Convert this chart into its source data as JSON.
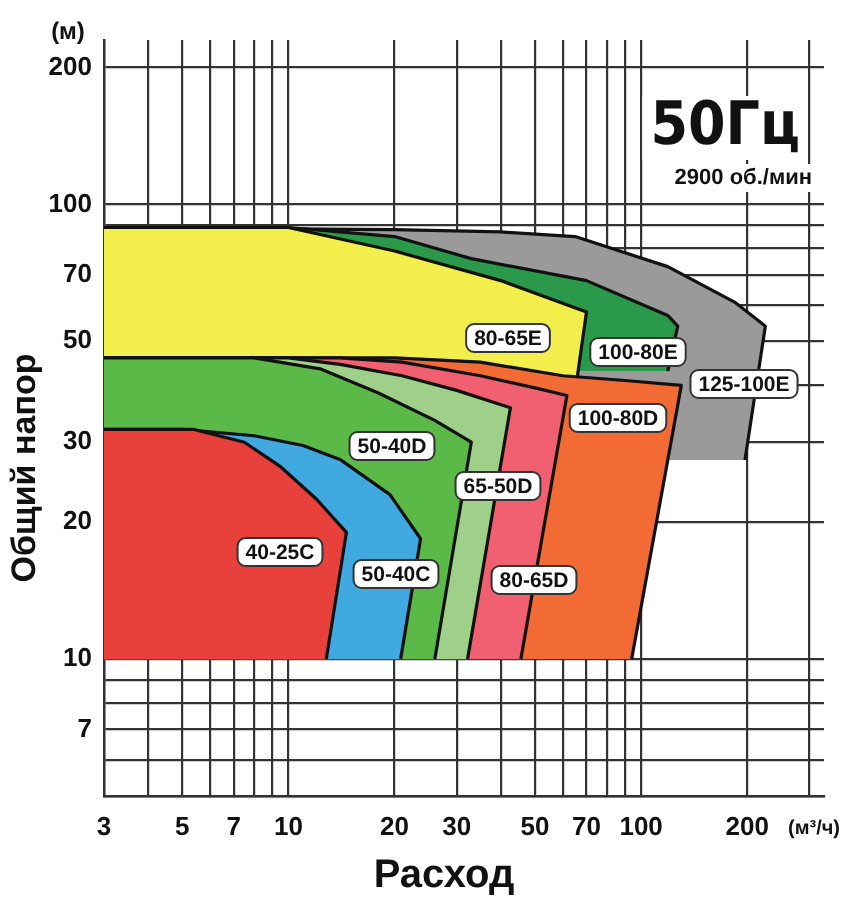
{
  "chart_data": {
    "type": "area",
    "xlabel": "Расход",
    "ylabel": "Общий напор",
    "log": "xy",
    "grid": true,
    "legend": false,
    "annotations": [
      "(м)",
      "(м³/ч)",
      "50Гц",
      "2900 об./мин"
    ],
    "xlim": [
      3,
      330
    ],
    "ylim": [
      5,
      230
    ],
    "xticks": [
      3,
      {
        "value": 4,
        "label": null
      },
      5,
      {
        "value": 6,
        "label": null
      },
      7,
      {
        "value": 8,
        "label": null
      },
      {
        "value": 9,
        "label": null
      },
      10,
      20,
      30,
      {
        "value": 40,
        "label": null
      },
      50,
      {
        "value": 60,
        "label": null
      },
      70,
      {
        "value": 80,
        "label": null
      },
      {
        "value": 90,
        "label": null
      },
      100,
      200,
      {
        "value": 300,
        "label": null
      }
    ],
    "yticks": [
      {
        "value": 5,
        "label": null
      },
      {
        "value": 6,
        "label": null
      },
      7,
      {
        "value": 8,
        "label": null
      },
      {
        "value": 9,
        "label": null
      },
      10,
      20,
      30,
      {
        "value": 40,
        "label": null
      },
      50,
      {
        "value": 60,
        "label": null
      },
      70,
      {
        "value": 80,
        "label": null
      },
      {
        "value": 90,
        "label": null
      },
      100,
      200
    ],
    "series": [
      {
        "name": "125-100E",
        "color": "#9a9a9a",
        "x": [
          3,
          20,
          40,
          65,
          119,
          184,
          225,
          197
        ],
        "values": [
          89,
          88,
          87,
          85,
          73,
          61,
          54,
          27.4
        ]
      },
      {
        "name": "100-80E",
        "color": "#2a9a4a",
        "x": [
          3,
          10,
          20,
          33,
          70,
          119,
          127,
          119
        ],
        "values": [
          89,
          89,
          85,
          76,
          68,
          57,
          54,
          43
        ]
      },
      {
        "name": "80-65E",
        "color": "#f2ee4c",
        "x": [
          3,
          10,
          20,
          40,
          70,
          66
        ],
        "values": [
          89,
          89,
          79,
          68,
          58,
          42
        ]
      },
      {
        "name": "100-80D",
        "color": "#f26b35",
        "x": [
          3,
          20,
          35,
          60,
          90,
          130,
          94
        ],
        "values": [
          46,
          46,
          45,
          42,
          41,
          40,
          10
        ]
      },
      {
        "name": "80-65D",
        "color": "#f06070",
        "x": [
          3,
          14,
          21,
          35,
          50,
          61.6,
          45.6
        ],
        "values": [
          46,
          46,
          45,
          42,
          39.5,
          38,
          10
        ]
      },
      {
        "name": "65-50D",
        "color": "#9fd08a",
        "x": [
          3,
          10,
          14,
          21,
          30,
          42.6,
          32.2
        ],
        "values": [
          46,
          46,
          44.5,
          42,
          39,
          35.7,
          10
        ]
      },
      {
        "name": "50-40D",
        "color": "#5bb947",
        "x": [
          3,
          8,
          12.3,
          18,
          26,
          33,
          26
        ],
        "values": [
          46,
          46,
          43.5,
          38.5,
          33.5,
          30,
          10
        ]
      },
      {
        "name": "50-40C",
        "color": "#3fa9e0",
        "x": [
          3,
          5,
          8,
          11,
          14,
          19.4,
          23.7,
          20.8
        ],
        "values": [
          32,
          32,
          31,
          29.5,
          27.5,
          23,
          18.4,
          10
        ]
      },
      {
        "name": "40-25C",
        "color": "#e8413c",
        "x": [
          3,
          5.4,
          7.5,
          9.5,
          12,
          14.6,
          12.8
        ],
        "values": [
          32,
          32,
          30,
          26.5,
          22.5,
          19,
          10
        ]
      }
    ]
  }
}
